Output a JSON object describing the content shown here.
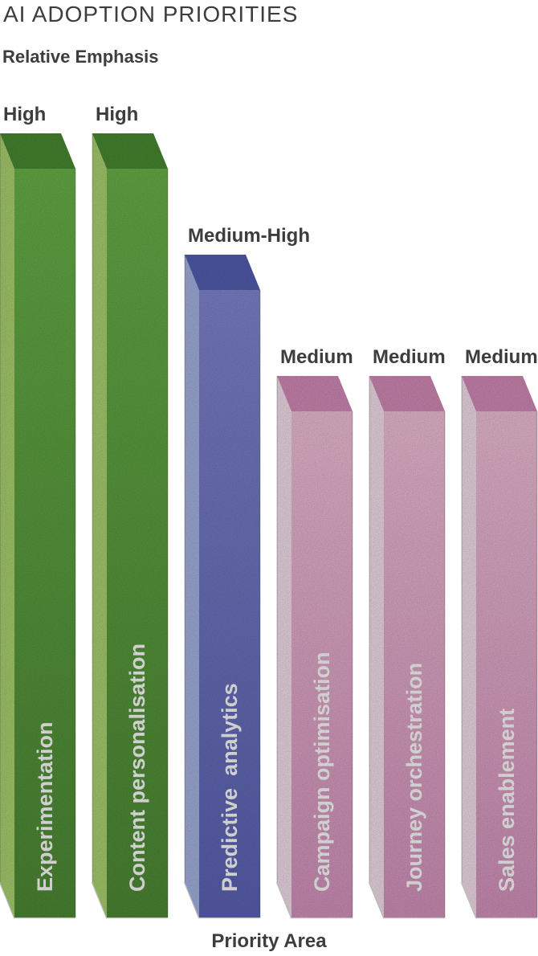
{
  "header": {
    "title": "AI ADOPTION PRIORITIES"
  },
  "axes": {
    "y_label": "Relative Emphasis",
    "x_label": "Priority Area"
  },
  "colors": {
    "background": "#ffffff",
    "text": "#3d3d3d",
    "bar_label_text": "#ffffff"
  },
  "chart_data": {
    "type": "bar",
    "title": "AI ADOPTION PRIORITIES",
    "ylabel": "Relative Emphasis",
    "xlabel": "Priority Area",
    "style": "3d-oblique-bars",
    "grid": false,
    "legend": false,
    "value_scale": {
      "Medium": 2,
      "Medium-High": 2.5,
      "High": 3
    },
    "bars": [
      {
        "category": "Experimentation",
        "value_label": "High",
        "value": 3,
        "palette": "green"
      },
      {
        "category": "Content personalisation",
        "value_label": "High",
        "value": 3,
        "palette": "green"
      },
      {
        "category": "Predictive  analytics",
        "value_label": "Medium-High",
        "value": 2.5,
        "palette": "blue"
      },
      {
        "category": "Campaign optimisation",
        "value_label": "Medium",
        "value": 2,
        "palette": "pink"
      },
      {
        "category": "Journey orchestration",
        "value_label": "Medium",
        "value": 2,
        "palette": "pink"
      },
      {
        "category": "Sales enablement",
        "value_label": "Medium",
        "value": 2,
        "palette": "pink"
      }
    ],
    "palettes": {
      "green": {
        "left": "#aed673",
        "top": "#4a8c32",
        "front_top": "#6ab54a",
        "front_bottom": "#4f8c36"
      },
      "blue": {
        "left": "#a8b7e6",
        "top": "#5560b4",
        "front_top": "#8287d1",
        "front_bottom": "#5d64b6"
      },
      "pink": {
        "left": "#f8e3ef",
        "top": "#d78cba",
        "front_top": "#f3c2da",
        "front_bottom": "#d795bf"
      }
    }
  }
}
